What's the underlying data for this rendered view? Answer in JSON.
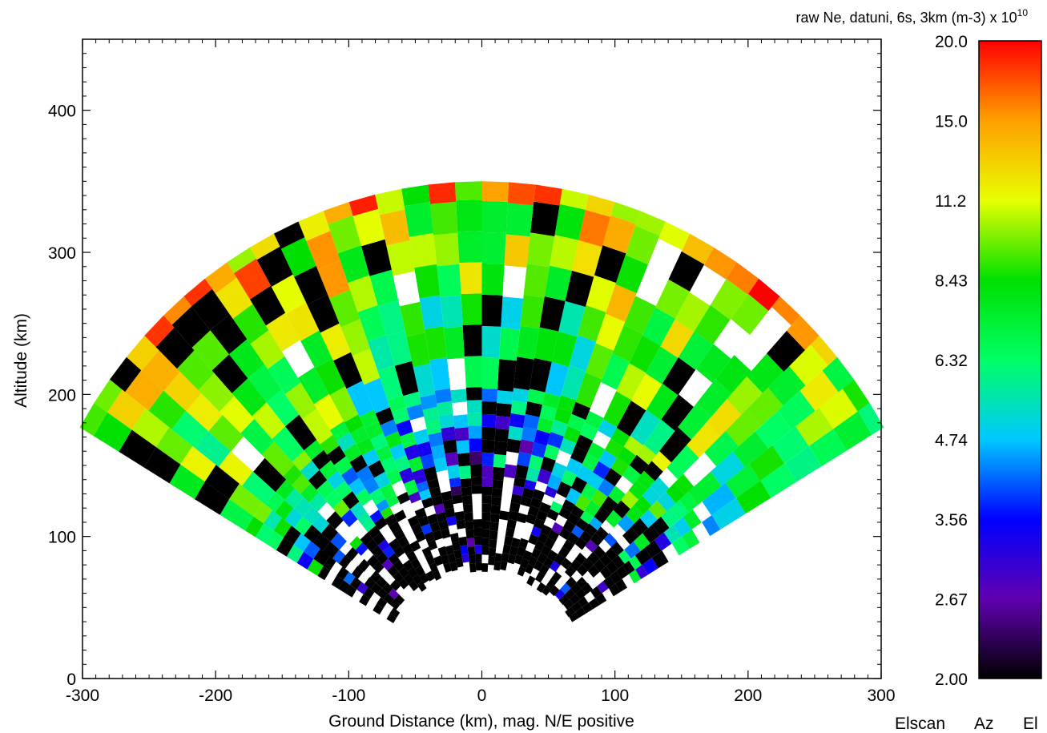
{
  "chart_data": {
    "type": "heatmap",
    "title": "raw Ne, datuni, 6s, 3km (m-3) x 10",
    "title_exponent": "10",
    "xlabel": "Ground Distance (km), mag. N/E positive",
    "ylabel": "Altitude (km)",
    "xlim": [
      -300,
      300
    ],
    "ylim": [
      0,
      450
    ],
    "x_ticks": [
      "-300",
      "-200",
      "-100",
      "0",
      "100",
      "200",
      "300"
    ],
    "y_ticks": [
      "0",
      "100",
      "200",
      "300",
      "400"
    ],
    "grid": false,
    "colorbar": {
      "ticks": [
        "2.00",
        "2.67",
        "3.56",
        "4.74",
        "6.32",
        "8.43",
        "11.2",
        "15.0",
        "20.0"
      ],
      "range": [
        2.0,
        20.0
      ],
      "scale": "log",
      "colors": [
        "#000000",
        "#6000b0",
        "#0000ff",
        "#00c8ff",
        "#00ff66",
        "#00e000",
        "#e8ff00",
        "#ffa000",
        "#ff0000"
      ]
    },
    "scan": {
      "min_elevation_deg": 32,
      "max_elevation_deg": 148,
      "min_range_km": 75,
      "max_range_km": 350,
      "range_gate_km": 3,
      "beam_count": 36
    },
    "footer": {
      "scan_type": "Elscan",
      "az_label": "Az",
      "el_label": "El"
    }
  }
}
